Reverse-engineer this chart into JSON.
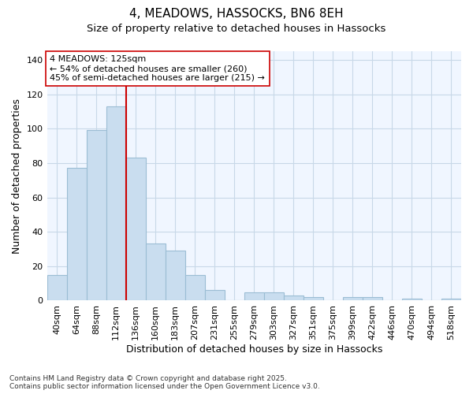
{
  "title_line1": "4, MEADOWS, HASSOCKS, BN6 8EH",
  "title_line2": "Size of property relative to detached houses in Hassocks",
  "xlabel": "Distribution of detached houses by size in Hassocks",
  "ylabel": "Number of detached properties",
  "categories": [
    "40sqm",
    "64sqm",
    "88sqm",
    "112sqm",
    "136sqm",
    "160sqm",
    "183sqm",
    "207sqm",
    "231sqm",
    "255sqm",
    "279sqm",
    "303sqm",
    "327sqm",
    "351sqm",
    "375sqm",
    "399sqm",
    "422sqm",
    "446sqm",
    "470sqm",
    "494sqm",
    "518sqm"
  ],
  "values": [
    15,
    77,
    99,
    113,
    83,
    33,
    29,
    15,
    6,
    0,
    5,
    5,
    3,
    2,
    0,
    2,
    2,
    0,
    1,
    0,
    1
  ],
  "bar_color": "#c9ddef",
  "bar_edgecolor": "#9bbdd4",
  "vline_position": 3.5,
  "vline_color": "#cc0000",
  "annotation_line1": "4 MEADOWS: 125sqm",
  "annotation_line2": "← 54% of detached houses are smaller (260)",
  "annotation_line3": "45% of semi-detached houses are larger (215) →",
  "annotation_box_edgecolor": "#cc0000",
  "annotation_box_facecolor": "#ffffff",
  "ylim": [
    0,
    145
  ],
  "yticks": [
    0,
    20,
    40,
    60,
    80,
    100,
    120,
    140
  ],
  "background_color": "#ffffff",
  "plot_background": "#f0f6ff",
  "grid_color": "#c8d8e8",
  "footnote": "Contains HM Land Registry data © Crown copyright and database right 2025.\nContains public sector information licensed under the Open Government Licence v3.0.",
  "title_fontsize": 11,
  "subtitle_fontsize": 9.5,
  "axis_label_fontsize": 9,
  "tick_fontsize": 8,
  "annotation_fontsize": 8,
  "footnote_fontsize": 6.5
}
